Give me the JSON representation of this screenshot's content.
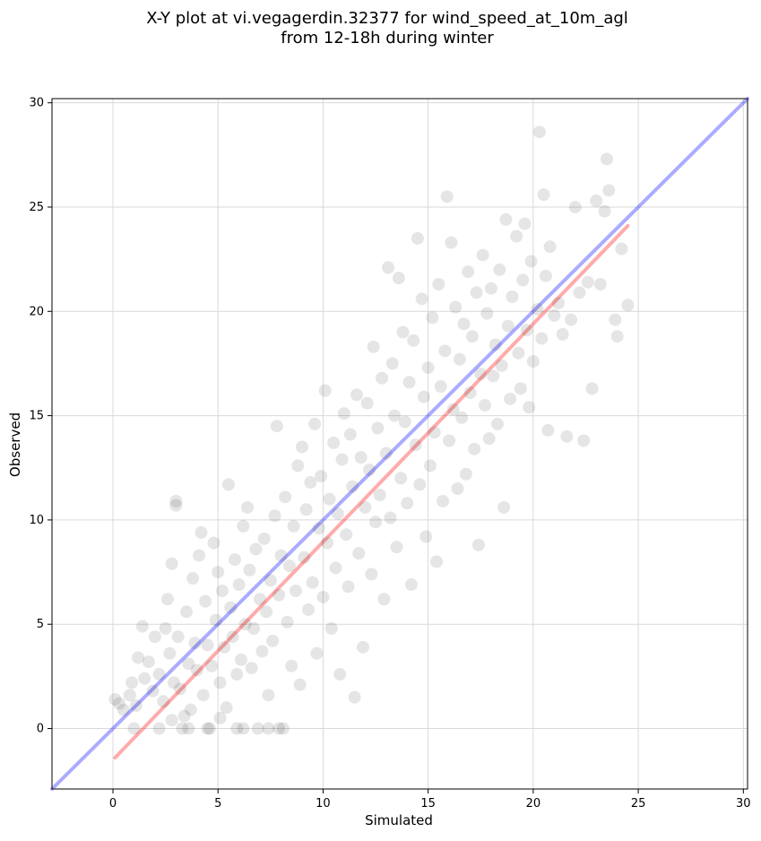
{
  "chart_data": {
    "type": "scatter",
    "title": "X-Y plot at vi.vegagerdin.32377 for wind_speed_at_10m_agl",
    "subtitle": "from 12-18h during winter",
    "xlabel": "Simulated",
    "ylabel": "Observed",
    "xlim": [
      -2.9,
      30.2
    ],
    "ylim": [
      -2.9,
      30.2
    ],
    "xticks": [
      0,
      5,
      10,
      15,
      20,
      25,
      30
    ],
    "yticks": [
      0,
      5,
      10,
      15,
      20,
      25,
      30
    ],
    "grid": true,
    "reference_lines": [
      {
        "label": "",
        "color": "#0000ff",
        "alpha": 0.33,
        "points": [
          [
            -2.9,
            -2.9
          ],
          [
            30.2,
            30.2
          ]
        ]
      },
      {
        "label": "",
        "color": "#ff0000",
        "alpha": 0.33,
        "points": [
          [
            0.1,
            -1.4
          ],
          [
            24.5,
            24.1
          ]
        ]
      }
    ],
    "series": [
      {
        "color": "#000000",
        "alpha": 0.1,
        "points": [
          [
            0.1,
            1.4
          ],
          [
            0.3,
            1.2
          ],
          [
            0.5,
            0.9
          ],
          [
            0.8,
            1.6
          ],
          [
            0.9,
            2.2
          ],
          [
            1.1,
            1.1
          ],
          [
            1.2,
            3.4
          ],
          [
            1.4,
            4.9
          ],
          [
            1.5,
            2.4
          ],
          [
            1.7,
            3.2
          ],
          [
            1.9,
            1.8
          ],
          [
            2.0,
            4.4
          ],
          [
            2.2,
            2.6
          ],
          [
            2.4,
            1.3
          ],
          [
            2.5,
            4.8
          ],
          [
            2.6,
            6.2
          ],
          [
            2.7,
            3.6
          ],
          [
            2.8,
            7.9
          ],
          [
            2.9,
            2.2
          ],
          [
            3.0,
            10.9
          ],
          [
            3.0,
            10.7
          ],
          [
            3.1,
            4.4
          ],
          [
            3.2,
            1.9
          ],
          [
            3.3,
            0.0
          ],
          [
            3.4,
            0.6
          ],
          [
            3.5,
            5.6
          ],
          [
            3.6,
            3.1
          ],
          [
            3.7,
            0.9
          ],
          [
            3.8,
            7.2
          ],
          [
            3.9,
            4.1
          ],
          [
            4.0,
            2.8
          ],
          [
            4.1,
            8.3
          ],
          [
            4.2,
            9.4
          ],
          [
            4.3,
            1.6
          ],
          [
            4.4,
            6.1
          ],
          [
            4.5,
            4.0
          ],
          [
            4.6,
            0.0
          ],
          [
            4.7,
            3.0
          ],
          [
            4.8,
            8.9
          ],
          [
            4.9,
            5.2
          ],
          [
            5.0,
            7.5
          ],
          [
            5.1,
            2.2
          ],
          [
            5.2,
            6.6
          ],
          [
            5.3,
            3.9
          ],
          [
            5.4,
            1.0
          ],
          [
            5.5,
            11.7
          ],
          [
            5.6,
            5.8
          ],
          [
            5.7,
            4.4
          ],
          [
            5.8,
            8.1
          ],
          [
            5.9,
            2.6
          ],
          [
            6.0,
            6.9
          ],
          [
            6.1,
            3.3
          ],
          [
            6.2,
            9.7
          ],
          [
            6.3,
            5.0
          ],
          [
            6.4,
            10.6
          ],
          [
            6.5,
            7.6
          ],
          [
            6.6,
            2.9
          ],
          [
            6.7,
            4.8
          ],
          [
            6.8,
            8.6
          ],
          [
            6.9,
            0.0
          ],
          [
            7.0,
            6.2
          ],
          [
            7.1,
            3.7
          ],
          [
            7.2,
            9.1
          ],
          [
            7.3,
            5.6
          ],
          [
            7.4,
            1.6
          ],
          [
            7.5,
            7.1
          ],
          [
            7.6,
            4.2
          ],
          [
            7.7,
            10.2
          ],
          [
            7.8,
            14.5
          ],
          [
            7.9,
            6.4
          ],
          [
            8.0,
            8.3
          ],
          [
            8.1,
            0.0
          ],
          [
            8.2,
            11.1
          ],
          [
            8.3,
            5.1
          ],
          [
            8.4,
            7.8
          ],
          [
            8.5,
            3.0
          ],
          [
            8.6,
            9.7
          ],
          [
            8.7,
            6.6
          ],
          [
            8.8,
            12.6
          ],
          [
            8.9,
            2.1
          ],
          [
            9.0,
            13.5
          ],
          [
            9.1,
            8.2
          ],
          [
            9.2,
            10.5
          ],
          [
            9.3,
            5.7
          ],
          [
            9.4,
            11.8
          ],
          [
            9.5,
            7.0
          ],
          [
            9.6,
            14.6
          ],
          [
            9.7,
            3.6
          ],
          [
            9.8,
            9.6
          ],
          [
            9.9,
            12.1
          ],
          [
            10.0,
            6.3
          ],
          [
            10.1,
            16.2
          ],
          [
            10.2,
            8.9
          ],
          [
            10.3,
            11.0
          ],
          [
            10.4,
            4.8
          ],
          [
            10.5,
            13.7
          ],
          [
            10.6,
            7.7
          ],
          [
            10.7,
            10.3
          ],
          [
            10.8,
            2.6
          ],
          [
            10.9,
            12.9
          ],
          [
            11.0,
            15.1
          ],
          [
            11.1,
            9.3
          ],
          [
            11.2,
            6.8
          ],
          [
            11.3,
            14.1
          ],
          [
            11.4,
            11.6
          ],
          [
            11.5,
            1.5
          ],
          [
            11.6,
            16.0
          ],
          [
            11.7,
            8.4
          ],
          [
            11.8,
            13.0
          ],
          [
            11.9,
            3.9
          ],
          [
            12.0,
            10.6
          ],
          [
            12.1,
            15.6
          ],
          [
            12.2,
            12.4
          ],
          [
            12.3,
            7.4
          ],
          [
            12.4,
            18.3
          ],
          [
            12.5,
            9.9
          ],
          [
            12.6,
            14.4
          ],
          [
            12.7,
            11.2
          ],
          [
            12.8,
            16.8
          ],
          [
            12.9,
            6.2
          ],
          [
            13.0,
            13.2
          ],
          [
            13.1,
            22.1
          ],
          [
            13.2,
            10.1
          ],
          [
            13.3,
            17.5
          ],
          [
            13.4,
            15.0
          ],
          [
            13.5,
            8.7
          ],
          [
            13.6,
            21.6
          ],
          [
            13.7,
            12.0
          ],
          [
            13.8,
            19.0
          ],
          [
            13.9,
            14.7
          ],
          [
            14.0,
            10.8
          ],
          [
            14.1,
            16.6
          ],
          [
            14.2,
            6.9
          ],
          [
            14.3,
            18.6
          ],
          [
            14.4,
            13.6
          ],
          [
            14.5,
            23.5
          ],
          [
            14.6,
            11.7
          ],
          [
            14.7,
            20.6
          ],
          [
            14.8,
            15.9
          ],
          [
            14.9,
            9.2
          ],
          [
            15.0,
            17.3
          ],
          [
            15.1,
            12.6
          ],
          [
            15.2,
            19.7
          ],
          [
            15.3,
            14.2
          ],
          [
            15.4,
            8.0
          ],
          [
            15.5,
            21.3
          ],
          [
            15.6,
            16.4
          ],
          [
            15.7,
            10.9
          ],
          [
            15.8,
            18.1
          ],
          [
            15.9,
            25.5
          ],
          [
            16.0,
            13.8
          ],
          [
            16.1,
            23.3
          ],
          [
            16.2,
            15.3
          ],
          [
            16.3,
            20.2
          ],
          [
            16.4,
            11.5
          ],
          [
            16.5,
            17.7
          ],
          [
            16.6,
            14.9
          ],
          [
            16.7,
            19.4
          ],
          [
            16.8,
            12.2
          ],
          [
            16.9,
            21.9
          ],
          [
            17.0,
            16.1
          ],
          [
            17.1,
            18.8
          ],
          [
            17.2,
            13.4
          ],
          [
            17.3,
            20.9
          ],
          [
            17.4,
            8.8
          ],
          [
            17.5,
            17.0
          ],
          [
            17.6,
            22.7
          ],
          [
            17.7,
            15.5
          ],
          [
            17.8,
            19.9
          ],
          [
            17.9,
            13.9
          ],
          [
            18.0,
            21.1
          ],
          [
            18.1,
            16.9
          ],
          [
            18.2,
            18.4
          ],
          [
            18.3,
            14.6
          ],
          [
            18.4,
            22.0
          ],
          [
            18.5,
            17.4
          ],
          [
            18.6,
            10.6
          ],
          [
            18.7,
            24.4
          ],
          [
            18.8,
            19.3
          ],
          [
            18.9,
            15.8
          ],
          [
            19.0,
            20.7
          ],
          [
            19.2,
            23.6
          ],
          [
            19.3,
            18.0
          ],
          [
            19.4,
            16.3
          ],
          [
            19.5,
            21.5
          ],
          [
            19.6,
            24.2
          ],
          [
            19.7,
            19.1
          ],
          [
            19.8,
            15.4
          ],
          [
            19.9,
            22.4
          ],
          [
            20.0,
            17.6
          ],
          [
            20.2,
            20.1
          ],
          [
            20.3,
            28.6
          ],
          [
            20.4,
            18.7
          ],
          [
            20.5,
            25.6
          ],
          [
            20.6,
            21.7
          ],
          [
            20.7,
            14.3
          ],
          [
            20.8,
            23.1
          ],
          [
            21.0,
            19.8
          ],
          [
            21.2,
            20.4
          ],
          [
            21.4,
            18.9
          ],
          [
            21.6,
            14.0
          ],
          [
            21.8,
            19.6
          ],
          [
            22.0,
            25.0
          ],
          [
            22.2,
            20.9
          ],
          [
            22.4,
            13.8
          ],
          [
            22.6,
            21.4
          ],
          [
            22.8,
            16.3
          ],
          [
            23.0,
            25.3
          ],
          [
            23.2,
            21.3
          ],
          [
            23.4,
            24.8
          ],
          [
            23.5,
            27.3
          ],
          [
            23.6,
            25.8
          ],
          [
            23.9,
            19.6
          ],
          [
            24.0,
            18.8
          ],
          [
            24.2,
            23.0
          ],
          [
            24.5,
            20.3
          ],
          [
            2.2,
            0.0
          ],
          [
            3.6,
            0.0
          ],
          [
            4.5,
            0.0
          ],
          [
            5.9,
            0.0
          ],
          [
            6.2,
            0.0
          ],
          [
            7.4,
            0.0
          ],
          [
            7.9,
            0.0
          ],
          [
            1.0,
            0.0
          ],
          [
            2.8,
            0.4
          ],
          [
            5.1,
            0.5
          ]
        ]
      }
    ]
  }
}
